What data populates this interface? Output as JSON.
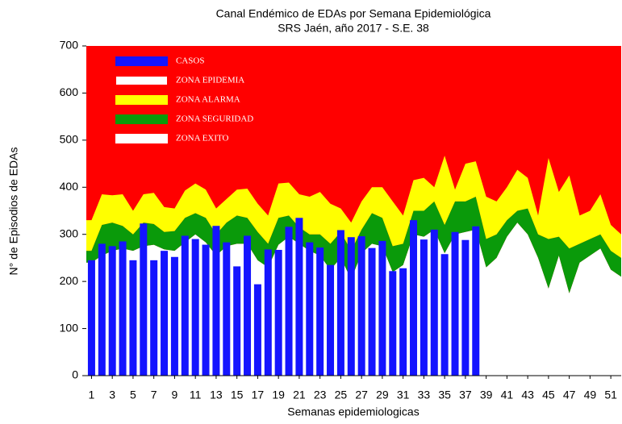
{
  "chart_data": {
    "type": "endemic",
    "title": "Canal Endémico de EDAs por Semana Epidemiológica",
    "subtitle": "SRS Jaén, año 2017 - S.E.  38",
    "x_label": "Semanas epidemiologicas",
    "y_label": "N° de Episodios de EDAs",
    "x": [
      1,
      2,
      3,
      4,
      5,
      6,
      7,
      8,
      9,
      10,
      11,
      12,
      13,
      14,
      15,
      16,
      17,
      18,
      19,
      20,
      21,
      22,
      23,
      24,
      25,
      26,
      27,
      28,
      29,
      30,
      31,
      32,
      33,
      34,
      35,
      36,
      37,
      38,
      39,
      40,
      41,
      42,
      43,
      44,
      45,
      46,
      47,
      48,
      49,
      50,
      51,
      52
    ],
    "xlim": [
      0.5,
      52
    ],
    "xticks": [
      1,
      3,
      5,
      7,
      9,
      11,
      13,
      15,
      17,
      19,
      21,
      23,
      25,
      27,
      29,
      31,
      33,
      35,
      37,
      39,
      41,
      43,
      45,
      47,
      49,
      51
    ],
    "ylim": [
      0,
      700
    ],
    "yticks": [
      0,
      100,
      200,
      300,
      400,
      500,
      600,
      700
    ],
    "series": [
      {
        "name": "CASOS",
        "color": "#1414ff",
        "kind": "bar",
        "values": [
          245,
          280,
          275,
          285,
          245,
          323,
          245,
          265,
          252,
          297,
          290,
          278,
          318,
          283,
          232,
          297,
          194,
          268,
          267,
          316,
          335,
          283,
          272,
          235,
          309,
          294,
          296,
          271,
          286,
          222,
          228,
          330,
          289,
          310,
          258,
          305,
          288,
          317,
          null,
          null,
          null,
          null,
          null,
          null,
          null,
          null,
          null,
          null,
          null,
          null,
          null,
          null
        ]
      },
      {
        "name": "ZONA EPIDEMIA",
        "color": "#ff0000",
        "kind": "background"
      },
      {
        "name": "ZONA ALARMA",
        "color": "#ffff00",
        "kind": "band",
        "values": [
          65,
          65,
          58,
          67,
          50,
          60,
          66,
          53,
          48,
          58,
          63,
          60,
          55,
          50,
          55,
          62,
          60,
          60,
          73,
          70,
          70,
          80,
          90,
          85,
          50,
          60,
          60,
          55,
          65,
          95,
          60,
          65,
          70,
          30,
          147,
          25,
          80,
          75,
          90,
          70,
          70,
          87,
          65,
          40,
          172,
          95,
          155,
          60,
          60,
          85,
          55,
          50
        ]
      },
      {
        "name": "ZONA SEGURIDAD",
        "color": "#0a9a0a",
        "kind": "band",
        "values": [
          25,
          65,
          60,
          48,
          35,
          50,
          44,
          37,
          42,
          52,
          45,
          52,
          45,
          50,
          60,
          55,
          60,
          50,
          57,
          45,
          35,
          35,
          45,
          55,
          55,
          60,
          50,
          65,
          60,
          55,
          45,
          50,
          55,
          60,
          60,
          70,
          65,
          70,
          60,
          50,
          35,
          25,
          55,
          50,
          105,
          40,
          95,
          40,
          35,
          30,
          40,
          40
        ]
      },
      {
        "name": "ZONA EXITO",
        "color": "#ffffff",
        "kind": "band",
        "values": [
          240,
          255,
          265,
          270,
          265,
          275,
          278,
          268,
          265,
          283,
          300,
          283,
          255,
          275,
          280,
          280,
          245,
          230,
          278,
          295,
          280,
          265,
          255,
          225,
          250,
          205,
          260,
          280,
          275,
          220,
          235,
          300,
          295,
          310,
          260,
          300,
          305,
          310,
          230,
          250,
          295,
          325,
          300,
          250,
          185,
          255,
          175,
          240,
          255,
          270,
          225,
          210
        ]
      }
    ]
  }
}
